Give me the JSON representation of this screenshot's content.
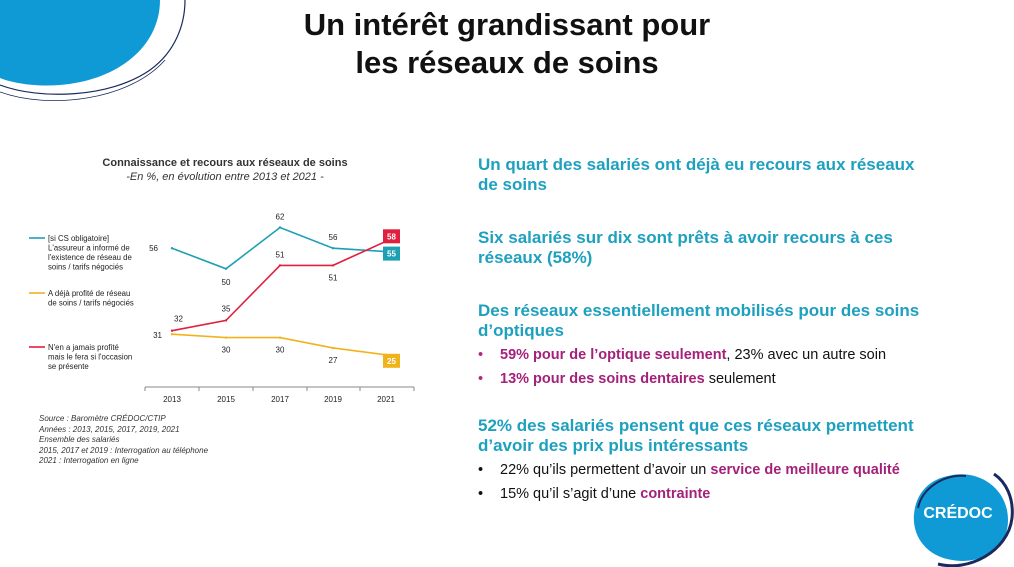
{
  "slide": {
    "title_line1": "Un intérêt grandissant pour",
    "title_line2": "les réseaux de soins"
  },
  "colors": {
    "teal": "#1ea0b4",
    "red": "#e0203f",
    "yellow": "#f2b21c",
    "heading_blue": "#1ea0bf",
    "highlight_purple": "#a4217a",
    "brand_blue": "#0f9ad6",
    "brand_navy": "#1b2a5e"
  },
  "chart_data": {
    "type": "line",
    "title": "Connaissance et recours aux réseaux de soins",
    "subtitle": "-En %, en évolution entre 2013 et 2021 -",
    "categories": [
      "2013",
      "2015",
      "2017",
      "2019",
      "2021"
    ],
    "ylim": [
      20,
      70
    ],
    "grid": false,
    "legend_position": "left",
    "series": [
      {
        "name": "[si CS obligatoire] L'assureur a informé de l'existence de réseau de soins / tarifs négociés",
        "legend_lines": [
          "[si CS obligatoire]",
          "L'assureur a informé de",
          "l'existence de réseau de",
          "soins / tarifs négociés"
        ],
        "color": "#1ea0b4",
        "values": [
          56,
          50,
          62,
          56,
          55
        ]
      },
      {
        "name": "A déjà profité de réseau de soins / tarifs négociés",
        "legend_lines": [
          "A déjà profité de réseau",
          "de soins / tarifs négociés"
        ],
        "color": "#f2b21c",
        "values": [
          31,
          30,
          30,
          27,
          25
        ]
      },
      {
        "name": "N'en a jamais profité mais le fera si l'occasion se présente",
        "legend_lines": [
          "N'en a jamais profité",
          "mais le fera si l'occasion",
          "se présente"
        ],
        "color": "#e0203f",
        "values": [
          32,
          35,
          51,
          51,
          58
        ]
      }
    ]
  },
  "source": {
    "lines": [
      "Source : Baromètre CRÉDOC/CTIP",
      "Années : 2013, 2015, 2017, 2019, 2021",
      "Ensemble des salariés",
      "2015, 2017 et 2019 : Interrogation au téléphone",
      "2021 : Interrogation en ligne"
    ]
  },
  "findings": {
    "h1_line1": "Un quart des salariés ont déjà eu recours aux réseaux",
    "h1_line2": "de soins",
    "h2_line1": "Six salariés sur dix sont prêts à avoir recours à ces",
    "h2_line2": "réseaux (58%)",
    "h3_line1": "Des réseaux essentiellement mobilisés pour des soins",
    "h3_line2": "d’optiques",
    "b1_highlight": "59% pour de l’optique seulement",
    "b1_rest": ", 23% avec un autre soin",
    "b2_highlight": "13% pour des soins dentaires",
    "b2_rest": " seulement",
    "h4_line1": "52% des salariés pensent que ces réseaux permettent",
    "h4_line2": "d’avoir des prix plus intéressants",
    "b3_pre": "22% qu’ils permettent d’avoir un ",
    "b3_highlight": "service de meilleure qualité",
    "b4_pre": "15% qu’il s’agit d’une ",
    "b4_highlight": "contrainte",
    "bullet_char": "•"
  },
  "brand": {
    "logo_text": "CRÉDOC"
  }
}
